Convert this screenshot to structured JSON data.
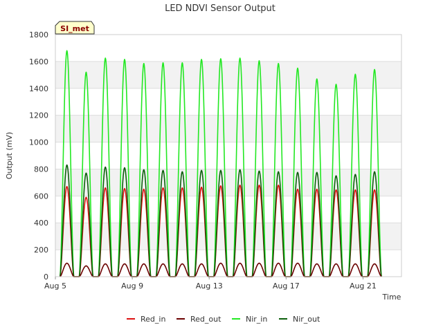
{
  "chart_data": {
    "type": "line",
    "title": "LED NDVI Sensor Output",
    "badge": "SI_met",
    "xlabel": "Time",
    "ylabel": "Output (mV)",
    "ylim": [
      0,
      1800
    ],
    "yticks": [
      0,
      200,
      400,
      600,
      800,
      1000,
      1200,
      1400,
      1600,
      1800
    ],
    "xlim": [
      0,
      18
    ],
    "xticks": [
      {
        "x": 0,
        "label": "Aug 5"
      },
      {
        "x": 4,
        "label": "Aug 9"
      },
      {
        "x": 8,
        "label": "Aug 13"
      },
      {
        "x": 12,
        "label": "Aug 17"
      },
      {
        "x": 16,
        "label": "Aug 21"
      }
    ],
    "x_units": "days since Aug 5",
    "day_peak_times": [
      0.6,
      1.6,
      2.6,
      3.6,
      4.6,
      5.6,
      6.6,
      7.6,
      8.6,
      9.6,
      10.6,
      11.6,
      12.6,
      13.6,
      14.6,
      15.6,
      16.6
    ],
    "series": [
      {
        "name": "Nir_in",
        "color": "#22e822",
        "peaks": [
          1680,
          1520,
          1625,
          1615,
          1585,
          1590,
          1590,
          1615,
          1620,
          1625,
          1605,
          1585,
          1550,
          1470,
          1430,
          1505,
          1540
        ]
      },
      {
        "name": "Nir_out",
        "color": "#0a5e0a",
        "peaks": [
          830,
          770,
          815,
          810,
          795,
          790,
          780,
          790,
          790,
          795,
          785,
          780,
          775,
          775,
          750,
          760,
          780
        ]
      },
      {
        "name": "Red_in",
        "color": "#dd1111",
        "peaks": [
          670,
          590,
          660,
          655,
          650,
          660,
          660,
          665,
          675,
          680,
          680,
          680,
          650,
          650,
          645,
          645,
          645
        ]
      },
      {
        "name": "Red_out",
        "color": "#6b0000",
        "peaks": [
          100,
          80,
          95,
          95,
          95,
          95,
          95,
          95,
          100,
          100,
          100,
          100,
          100,
          95,
          95,
          95,
          95
        ]
      }
    ],
    "legend": {
      "position": "bottom",
      "entries": [
        {
          "label": "Red_in",
          "color": "#dd1111"
        },
        {
          "label": "Red_out",
          "color": "#6b0000"
        },
        {
          "label": "Nir_in",
          "color": "#22e822"
        },
        {
          "label": "Nir_out",
          "color": "#0a5e0a"
        }
      ]
    },
    "grid": true
  }
}
